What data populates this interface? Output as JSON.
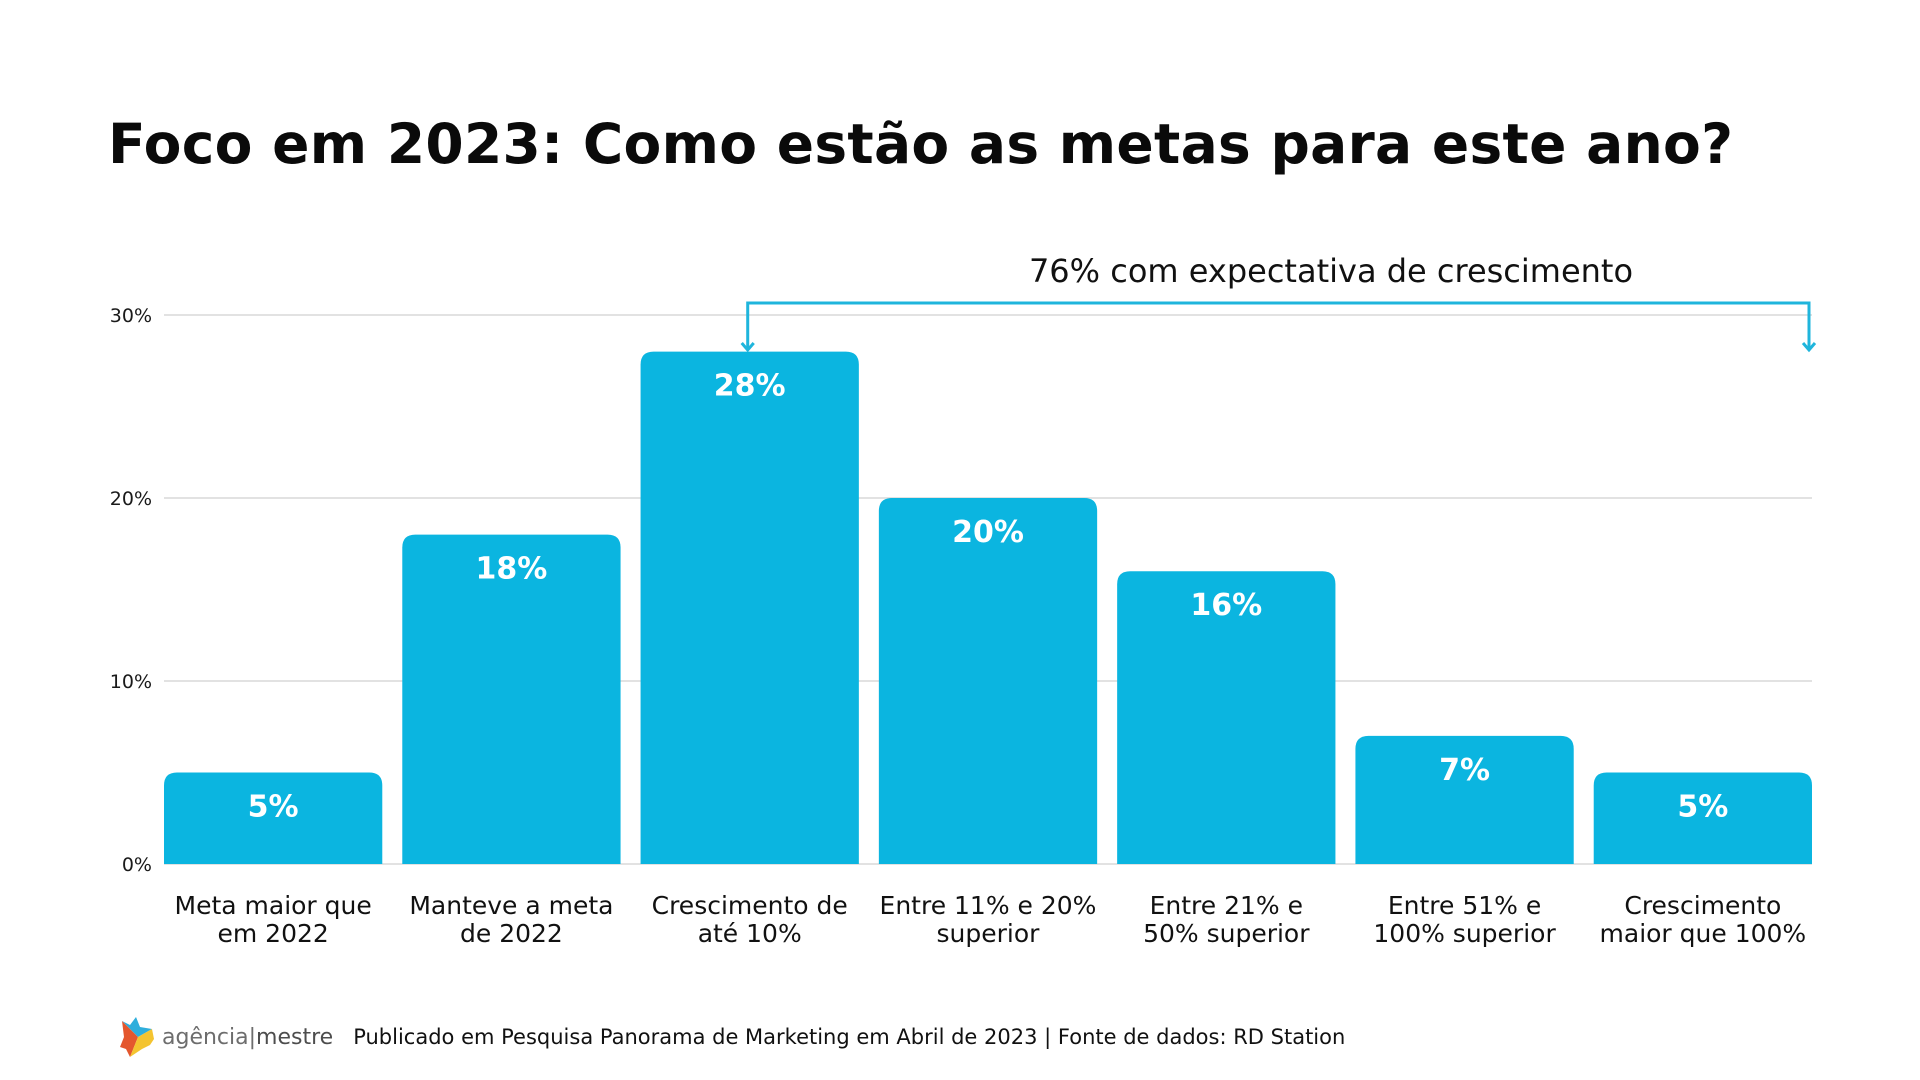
{
  "title": "Foco em 2023: Como estão as metas para este ano?",
  "colors": {
    "bar": "#0bb5e0",
    "bracket": "#1fb5dc",
    "grid": "#d9d9d9",
    "bar_label": "#ffffff"
  },
  "chart_data": {
    "type": "bar",
    "title": "Foco em 2023: Como estão as metas para este ano?",
    "xlabel": "",
    "ylabel": "",
    "ylim": [
      0,
      30
    ],
    "grid": true,
    "yticks": [
      0,
      10,
      20,
      30
    ],
    "ytick_labels": [
      "0%",
      "10%",
      "20%",
      "30%"
    ],
    "categories": [
      [
        "Meta maior que",
        "em 2022"
      ],
      [
        "Manteve a meta",
        "de 2022"
      ],
      [
        "Crescimento de",
        "até 10%"
      ],
      [
        "Entre 11% e 20%",
        "superior"
      ],
      [
        "Entre 21% e",
        "50% superior"
      ],
      [
        "Entre 51% e",
        "100% superior"
      ],
      [
        "Crescimento",
        "maior que 100%"
      ]
    ],
    "values": [
      5,
      18,
      28,
      20,
      16,
      7,
      5
    ],
    "data_labels": [
      "5%",
      "18%",
      "28%",
      "20%",
      "16%",
      "7%",
      "5%"
    ],
    "annotation": {
      "text": "76% com expectativa de crescimento",
      "from_category_index": 2,
      "to_category_index": 6
    }
  },
  "footer": {
    "logo_text_left": "agência",
    "logo_separator": "|",
    "logo_text_right": "mestre",
    "source": "Publicado em Pesquisa Panorama de Marketing em Abril de 2023 | Fonte de dados: RD Station"
  }
}
